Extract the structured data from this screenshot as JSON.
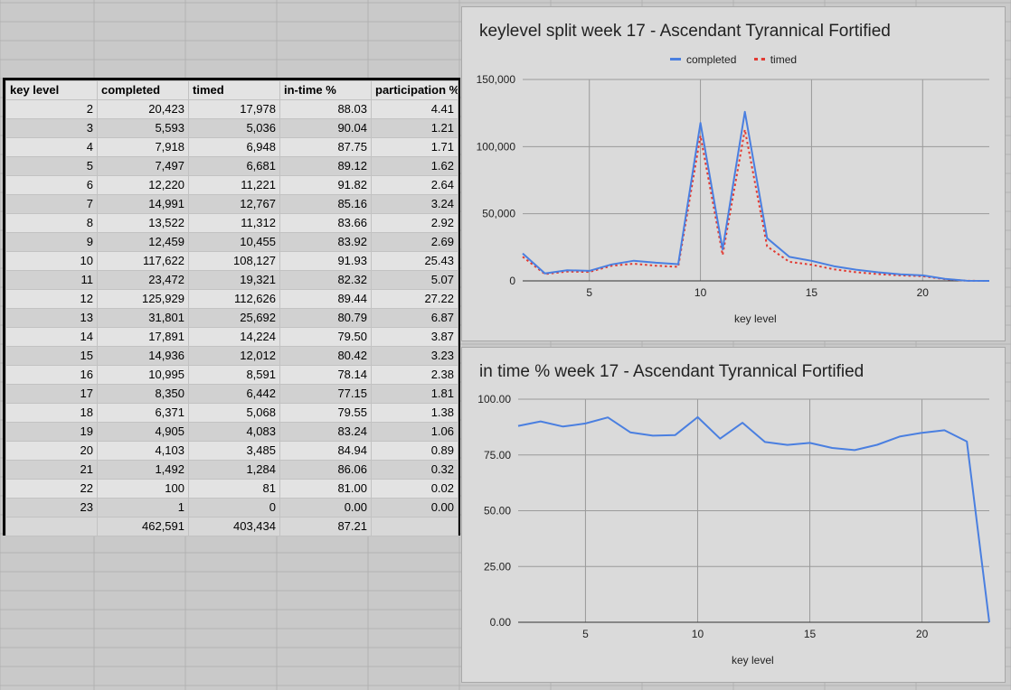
{
  "table": {
    "headers": [
      "key level",
      "completed",
      "timed",
      "in-time %",
      "participation %"
    ],
    "rows": [
      [
        "2",
        "20,423",
        "17,978",
        "88.03",
        "4.41"
      ],
      [
        "3",
        "5,593",
        "5,036",
        "90.04",
        "1.21"
      ],
      [
        "4",
        "7,918",
        "6,948",
        "87.75",
        "1.71"
      ],
      [
        "5",
        "7,497",
        "6,681",
        "89.12",
        "1.62"
      ],
      [
        "6",
        "12,220",
        "11,221",
        "91.82",
        "2.64"
      ],
      [
        "7",
        "14,991",
        "12,767",
        "85.16",
        "3.24"
      ],
      [
        "8",
        "13,522",
        "11,312",
        "83.66",
        "2.92"
      ],
      [
        "9",
        "12,459",
        "10,455",
        "83.92",
        "2.69"
      ],
      [
        "10",
        "117,622",
        "108,127",
        "91.93",
        "25.43"
      ],
      [
        "11",
        "23,472",
        "19,321",
        "82.32",
        "5.07"
      ],
      [
        "12",
        "125,929",
        "112,626",
        "89.44",
        "27.22"
      ],
      [
        "13",
        "31,801",
        "25,692",
        "80.79",
        "6.87"
      ],
      [
        "14",
        "17,891",
        "14,224",
        "79.50",
        "3.87"
      ],
      [
        "15",
        "14,936",
        "12,012",
        "80.42",
        "3.23"
      ],
      [
        "16",
        "10,995",
        "8,591",
        "78.14",
        "2.38"
      ],
      [
        "17",
        "8,350",
        "6,442",
        "77.15",
        "1.81"
      ],
      [
        "18",
        "6,371",
        "5,068",
        "79.55",
        "1.38"
      ],
      [
        "19",
        "4,905",
        "4,083",
        "83.24",
        "1.06"
      ],
      [
        "20",
        "4,103",
        "3,485",
        "84.94",
        "0.89"
      ],
      [
        "21",
        "1,492",
        "1,284",
        "86.06",
        "0.32"
      ],
      [
        "22",
        "100",
        "81",
        "81.00",
        "0.02"
      ],
      [
        "23",
        "1",
        "0",
        "0.00",
        "0.00"
      ]
    ],
    "totals": [
      "",
      "462,591",
      "403,434",
      "87.21",
      ""
    ]
  },
  "colors": {
    "completed": "#4a7fe0",
    "timed": "#e23a32",
    "grid": "#9a9a9a"
  },
  "chart_data": [
    {
      "type": "line",
      "title": "keylevel split week 17 - Ascendant Tyrannical Fortified",
      "xlabel": "key level",
      "ylabel": "",
      "x": [
        2,
        3,
        4,
        5,
        6,
        7,
        8,
        9,
        10,
        11,
        12,
        13,
        14,
        15,
        16,
        17,
        18,
        19,
        20,
        21,
        22,
        23
      ],
      "xticks": [
        "5",
        "10",
        "15",
        "20"
      ],
      "yticks": [
        "0",
        "50,000",
        "100,000",
        "150,000"
      ],
      "xlim": [
        2,
        23
      ],
      "ylim": [
        0,
        150000
      ],
      "legend_position": "top",
      "series": [
        {
          "name": "completed",
          "style": "solid",
          "values": [
            20423,
            5593,
            7918,
            7497,
            12220,
            14991,
            13522,
            12459,
            117622,
            23472,
            125929,
            31801,
            17891,
            14936,
            10995,
            8350,
            6371,
            4905,
            4103,
            1492,
            100,
            1
          ]
        },
        {
          "name": "timed",
          "style": "dotted",
          "values": [
            17978,
            5036,
            6948,
            6681,
            11221,
            12767,
            11312,
            10455,
            108127,
            19321,
            112626,
            25692,
            14224,
            12012,
            8591,
            6442,
            5068,
            4083,
            3485,
            1284,
            81,
            0
          ]
        }
      ]
    },
    {
      "type": "line",
      "title": "in time % week 17 - Ascendant Tyrannical Fortified",
      "xlabel": "key level",
      "ylabel": "",
      "x": [
        2,
        3,
        4,
        5,
        6,
        7,
        8,
        9,
        10,
        11,
        12,
        13,
        14,
        15,
        16,
        17,
        18,
        19,
        20,
        21,
        22,
        23
      ],
      "xticks": [
        "5",
        "10",
        "15",
        "20"
      ],
      "yticks": [
        "0.00",
        "25.00",
        "50.00",
        "75.00",
        "100.00"
      ],
      "xlim": [
        2,
        23
      ],
      "ylim": [
        0,
        100
      ],
      "series": [
        {
          "values": [
            88.03,
            90.04,
            87.75,
            89.12,
            91.82,
            85.16,
            83.66,
            83.92,
            91.93,
            82.32,
            89.44,
            80.79,
            79.5,
            80.42,
            78.14,
            77.15,
            79.55,
            83.24,
            84.94,
            86.06,
            81.0,
            0.0
          ]
        }
      ]
    }
  ]
}
